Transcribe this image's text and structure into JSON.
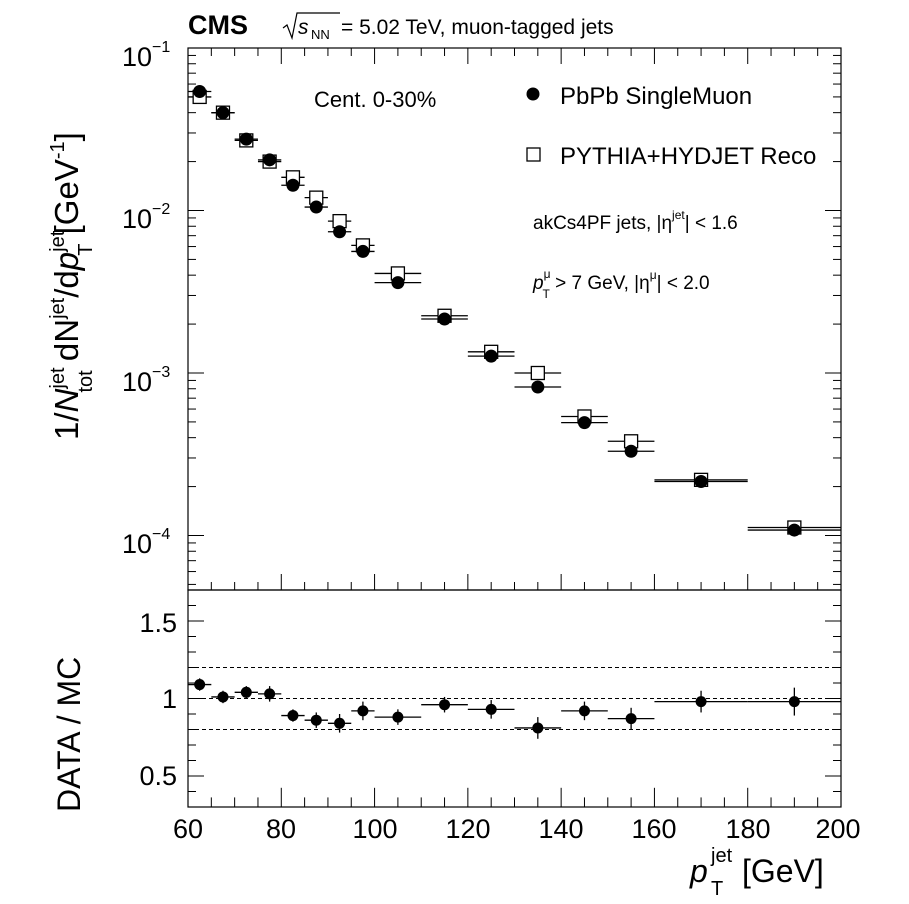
{
  "header": {
    "experiment": "CMS",
    "sqrt_s_label": "s",
    "sqrt_s_sub": "NN",
    "energy_text": "= 5.02 TeV, muon-tagged jets"
  },
  "annotations": {
    "centrality": "Cent. 0-30%",
    "jets_prefix": "akCs4PF jets, |η",
    "jets_sup": "jet",
    "jets_suffix": "| < 1.6",
    "muon_p": "p",
    "muon_sup": "μ",
    "muon_sub": "T",
    "muon_mid": " > 7 GeV, |η",
    "muon_sup2": "μ",
    "muon_suffix": "| < 2.0"
  },
  "legend": {
    "placement": "top-right",
    "data_label": "PbPb SingleMuon",
    "mc_label": "PYTHIA+HYDJET Reco"
  },
  "axes": {
    "xlabel_p": "p",
    "xlabel_sup": "jet",
    "xlabel_sub": "T",
    "xlabel_unit": " [GeV]",
    "ylabel_top": {
      "one_over": "1/",
      "N": "N",
      "N_sup": "jet",
      "N_sub": "tot",
      "dN": " dN",
      "dN_sup": "jet",
      "slash_dp": "/d",
      "p": "p",
      "p_sup": "jet",
      "p_sub": "T",
      "unit": " [GeV",
      "unit_sup": "-1",
      "unit_close": "]"
    },
    "ylabel_bottom": "DATA / MC",
    "y_top_ticks": [
      {
        "base": "10",
        "exp": "−1",
        "value": 0.1
      },
      {
        "base": "10",
        "exp": "−2",
        "value": 0.01
      },
      {
        "base": "10",
        "exp": "−3",
        "value": 0.001
      },
      {
        "base": "10",
        "exp": "−4",
        "value": 0.0001
      }
    ],
    "y_bottom_ticks": [
      "1.5",
      "1",
      "0.5"
    ],
    "x_ticks": [
      "60",
      "80",
      "100",
      "120",
      "140",
      "160",
      "180",
      "200"
    ]
  },
  "chart_data": {
    "type": "scatter",
    "xlim": [
      60,
      200
    ],
    "top_panel": {
      "yscale": "log",
      "ylim": [
        5e-05,
        0.1
      ],
      "series": [
        {
          "name": "PbPb SingleMuon",
          "marker": "filled-circle",
          "points": [
            {
              "x": 62.5,
              "xlo": 60,
              "xhi": 65,
              "y": 0.054
            },
            {
              "x": 67.5,
              "xlo": 65,
              "xhi": 70,
              "y": 0.04
            },
            {
              "x": 72.5,
              "xlo": 70,
              "xhi": 75,
              "y": 0.0275
            },
            {
              "x": 77.5,
              "xlo": 75,
              "xhi": 80,
              "y": 0.0205
            },
            {
              "x": 82.5,
              "xlo": 80,
              "xhi": 85,
              "y": 0.0143
            },
            {
              "x": 87.5,
              "xlo": 85,
              "xhi": 90,
              "y": 0.0105
            },
            {
              "x": 92.5,
              "xlo": 90,
              "xhi": 95,
              "y": 0.0074
            },
            {
              "x": 97.5,
              "xlo": 95,
              "xhi": 100,
              "y": 0.0056
            },
            {
              "x": 105,
              "xlo": 100,
              "xhi": 110,
              "y": 0.0036
            },
            {
              "x": 115,
              "xlo": 110,
              "xhi": 120,
              "y": 0.00215
            },
            {
              "x": 125,
              "xlo": 120,
              "xhi": 130,
              "y": 0.00127
            },
            {
              "x": 135,
              "xlo": 130,
              "xhi": 140,
              "y": 0.00082
            },
            {
              "x": 145,
              "xlo": 140,
              "xhi": 150,
              "y": 0.000495
            },
            {
              "x": 155,
              "xlo": 150,
              "xhi": 160,
              "y": 0.00033
            },
            {
              "x": 170,
              "xlo": 160,
              "xhi": 180,
              "y": 0.000215
            },
            {
              "x": 190,
              "xlo": 180,
              "xhi": 200,
              "y": 0.000108
            }
          ]
        },
        {
          "name": "PYTHIA+HYDJET Reco",
          "marker": "open-square",
          "points": [
            {
              "x": 62.5,
              "xlo": 60,
              "xhi": 65,
              "y": 0.05
            },
            {
              "x": 67.5,
              "xlo": 65,
              "xhi": 70,
              "y": 0.04
            },
            {
              "x": 72.5,
              "xlo": 70,
              "xhi": 75,
              "y": 0.027
            },
            {
              "x": 77.5,
              "xlo": 75,
              "xhi": 80,
              "y": 0.02
            },
            {
              "x": 82.5,
              "xlo": 80,
              "xhi": 85,
              "y": 0.016
            },
            {
              "x": 87.5,
              "xlo": 85,
              "xhi": 90,
              "y": 0.012
            },
            {
              "x": 92.5,
              "xlo": 90,
              "xhi": 95,
              "y": 0.0086
            },
            {
              "x": 97.5,
              "xlo": 95,
              "xhi": 100,
              "y": 0.0061
            },
            {
              "x": 105,
              "xlo": 100,
              "xhi": 110,
              "y": 0.0041
            },
            {
              "x": 115,
              "xlo": 110,
              "xhi": 120,
              "y": 0.00225
            },
            {
              "x": 125,
              "xlo": 120,
              "xhi": 130,
              "y": 0.00135
            },
            {
              "x": 135,
              "xlo": 130,
              "xhi": 140,
              "y": 0.001
            },
            {
              "x": 145,
              "xlo": 140,
              "xhi": 150,
              "y": 0.00054
            },
            {
              "x": 155,
              "xlo": 150,
              "xhi": 160,
              "y": 0.00038
            },
            {
              "x": 170,
              "xlo": 160,
              "xhi": 180,
              "y": 0.00022
            },
            {
              "x": 190,
              "xlo": 180,
              "xhi": 200,
              "y": 0.000112
            }
          ]
        }
      ]
    },
    "bottom_panel": {
      "ylabel": "DATA / MC",
      "ylim": [
        0.3,
        1.7
      ],
      "reference_lines": [
        0.8,
        1.0,
        1.2
      ],
      "points": [
        {
          "x": 62.5,
          "xlo": 60,
          "xhi": 65,
          "y": 1.09,
          "err": 0.04
        },
        {
          "x": 67.5,
          "xlo": 65,
          "xhi": 70,
          "y": 1.01,
          "err": 0.04
        },
        {
          "x": 72.5,
          "xlo": 70,
          "xhi": 75,
          "y": 1.04,
          "err": 0.04
        },
        {
          "x": 77.5,
          "xlo": 75,
          "xhi": 80,
          "y": 1.03,
          "err": 0.05
        },
        {
          "x": 82.5,
          "xlo": 80,
          "xhi": 85,
          "y": 0.89,
          "err": 0.04
        },
        {
          "x": 87.5,
          "xlo": 85,
          "xhi": 90,
          "y": 0.86,
          "err": 0.05
        },
        {
          "x": 92.5,
          "xlo": 90,
          "xhi": 95,
          "y": 0.84,
          "err": 0.06
        },
        {
          "x": 97.5,
          "xlo": 95,
          "xhi": 100,
          "y": 0.92,
          "err": 0.06
        },
        {
          "x": 105,
          "xlo": 100,
          "xhi": 110,
          "y": 0.88,
          "err": 0.05
        },
        {
          "x": 115,
          "xlo": 110,
          "xhi": 120,
          "y": 0.96,
          "err": 0.05
        },
        {
          "x": 125,
          "xlo": 120,
          "xhi": 130,
          "y": 0.93,
          "err": 0.06
        },
        {
          "x": 135,
          "xlo": 130,
          "xhi": 140,
          "y": 0.81,
          "err": 0.07
        },
        {
          "x": 145,
          "xlo": 140,
          "xhi": 150,
          "y": 0.92,
          "err": 0.06
        },
        {
          "x": 155,
          "xlo": 150,
          "xhi": 160,
          "y": 0.87,
          "err": 0.07
        },
        {
          "x": 170,
          "xlo": 160,
          "xhi": 180,
          "y": 0.98,
          "err": 0.07
        },
        {
          "x": 190,
          "xlo": 180,
          "xhi": 200,
          "y": 0.98,
          "err": 0.09
        }
      ]
    }
  }
}
